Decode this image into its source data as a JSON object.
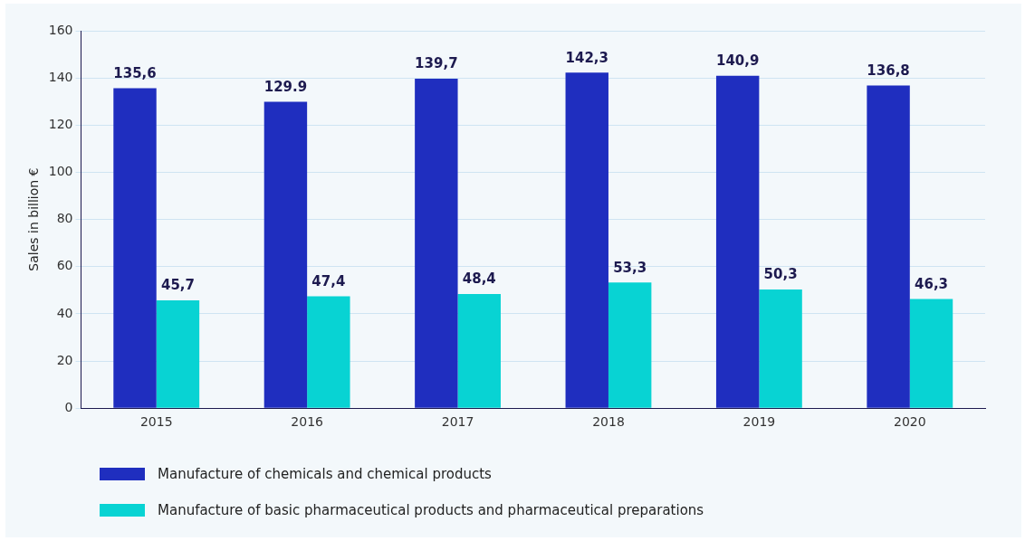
{
  "chart_data": {
    "type": "bar",
    "ylabel": "Sales in billion €",
    "categories": [
      "2015",
      "2016",
      "2017",
      "2018",
      "2019",
      "2020"
    ],
    "series": [
      {
        "name": "Manufacture of chemicals and chemical products",
        "color": "#1f2ebf",
        "values": [
          135.6,
          129.9,
          139.7,
          142.3,
          140.9,
          136.8
        ],
        "value_labels": [
          "135,6",
          "129.9",
          "139,7",
          "142,3",
          "140,9",
          "136,8"
        ]
      },
      {
        "name": "Manufacture of basic pharmaceutical products and pharmaceutical preparations",
        "color": "#08d3d3",
        "values": [
          45.7,
          47.4,
          48.4,
          53.3,
          50.3,
          46.3
        ],
        "value_labels": [
          "45,7",
          "47,4",
          "48,4",
          "53,3",
          "50,3",
          "46,3"
        ]
      }
    ],
    "ylim": [
      0,
      160
    ],
    "yticks": [
      0,
      20,
      40,
      60,
      80,
      100,
      120,
      140,
      160
    ],
    "grid": "y",
    "legend": "bottom left"
  }
}
